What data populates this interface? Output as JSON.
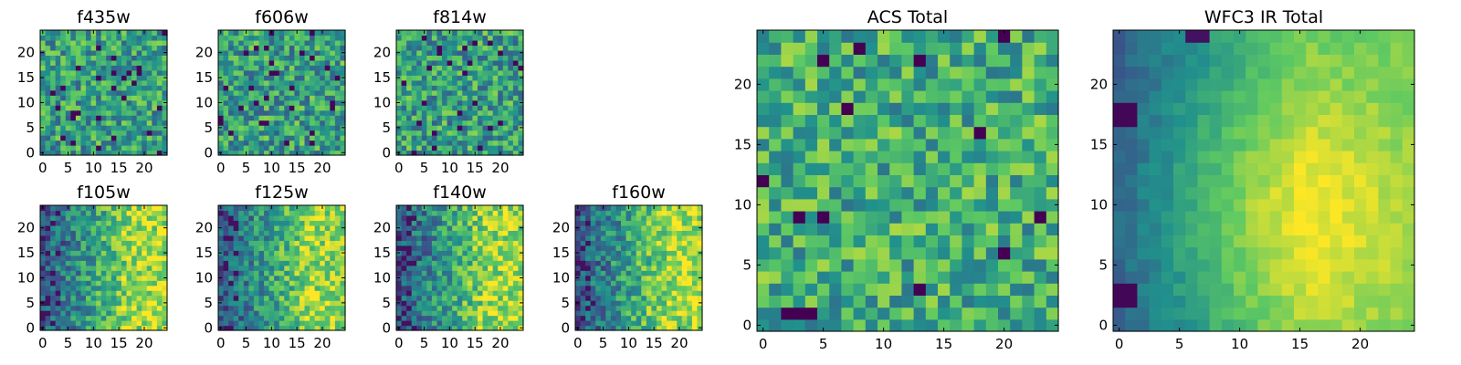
{
  "chart_data": [
    {
      "type": "heatmap",
      "title": "f435w",
      "group": "small",
      "seed": 11,
      "trend": "flat",
      "ylim": [
        0,
        24
      ],
      "xlim": [
        0,
        24
      ],
      "xticks": [
        "0",
        "5",
        "10",
        "15",
        "20"
      ],
      "yticks": [
        "0",
        "5",
        "10",
        "15",
        "20"
      ]
    },
    {
      "type": "heatmap",
      "title": "f606w",
      "group": "small",
      "seed": 23,
      "trend": "flat",
      "ylim": [
        0,
        24
      ],
      "xlim": [
        0,
        24
      ],
      "xticks": [
        "0",
        "5",
        "10",
        "15",
        "20"
      ],
      "yticks": [
        "0",
        "5",
        "10",
        "15",
        "20"
      ]
    },
    {
      "type": "heatmap",
      "title": "f814w",
      "group": "small",
      "seed": 37,
      "trend": "flat",
      "ylim": [
        0,
        24
      ],
      "xlim": [
        0,
        24
      ],
      "xticks": [
        "0",
        "5",
        "10",
        "15",
        "20"
      ],
      "yticks": [
        "0",
        "5",
        "10",
        "15",
        "20"
      ]
    },
    {
      "type": "heatmap",
      "title": "f105w",
      "group": "small",
      "seed": 41,
      "trend": "ir",
      "ylim": [
        0,
        24
      ],
      "xlim": [
        0,
        24
      ],
      "xticks": [
        "0",
        "5",
        "10",
        "15",
        "20"
      ],
      "yticks": [
        "0",
        "5",
        "10",
        "15",
        "20"
      ]
    },
    {
      "type": "heatmap",
      "title": "f125w",
      "group": "small",
      "seed": 53,
      "trend": "ir",
      "ylim": [
        0,
        24
      ],
      "xlim": [
        0,
        24
      ],
      "xticks": [
        "0",
        "5",
        "10",
        "15",
        "20"
      ],
      "yticks": [
        "0",
        "5",
        "10",
        "15",
        "20"
      ]
    },
    {
      "type": "heatmap",
      "title": "f140w",
      "group": "small",
      "seed": 67,
      "trend": "ir",
      "ylim": [
        0,
        24
      ],
      "xlim": [
        0,
        24
      ],
      "xticks": [
        "0",
        "5",
        "10",
        "15",
        "20"
      ],
      "yticks": [
        "0",
        "5",
        "10",
        "15",
        "20"
      ]
    },
    {
      "type": "heatmap",
      "title": "f160w",
      "group": "small",
      "seed": 79,
      "trend": "ir",
      "ylim": [
        0,
        24
      ],
      "xlim": [
        0,
        24
      ],
      "xticks": [
        "0",
        "5",
        "10",
        "15",
        "20"
      ],
      "yticks": [
        "0",
        "5",
        "10",
        "15",
        "20"
      ]
    },
    {
      "type": "heatmap",
      "title": "ACS Total",
      "group": "large",
      "seed": 97,
      "trend": "acs",
      "ylim": [
        0,
        24
      ],
      "xlim": [
        0,
        24
      ],
      "xticks": [
        "0",
        "5",
        "10",
        "15",
        "20"
      ],
      "yticks": [
        "0",
        "5",
        "10",
        "15",
        "20"
      ]
    },
    {
      "type": "heatmap",
      "title": "WFC3 IR Total",
      "group": "large",
      "seed": 113,
      "trend": "ir_total",
      "ylim": [
        0,
        24
      ],
      "xlim": [
        0,
        24
      ],
      "xticks": [
        "0",
        "5",
        "10",
        "15",
        "20"
      ],
      "yticks": [
        "0",
        "5",
        "10",
        "15",
        "20"
      ]
    }
  ],
  "colormap": [
    "#440154",
    "#3b528b",
    "#21918c",
    "#5ec962",
    "#fde725"
  ],
  "grid": "off",
  "legend": "none"
}
